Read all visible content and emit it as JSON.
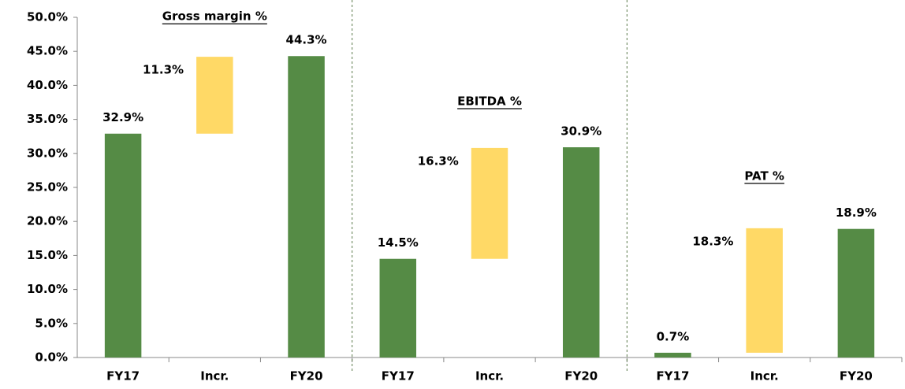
{
  "chart_data": {
    "type": "waterfall",
    "groups": [
      {
        "title": "Gross margin %",
        "categories": [
          "FY17",
          "Incr.",
          "FY20"
        ],
        "values": [
          32.9,
          11.3,
          44.3
        ],
        "value_labels": [
          "32.9%",
          "11.3%",
          "44.3%"
        ]
      },
      {
        "title": "EBITDA %",
        "categories": [
          "FY17",
          "Incr.",
          "FY20"
        ],
        "values": [
          14.5,
          16.3,
          30.9
        ],
        "value_labels": [
          "14.5%",
          "16.3%",
          "30.9%"
        ]
      },
      {
        "title": "PAT %",
        "categories": [
          "FY17",
          "Incr.",
          "FY20"
        ],
        "values": [
          0.7,
          18.3,
          18.9
        ],
        "value_labels": [
          "0.7%",
          "18.3%",
          "18.9%"
        ]
      }
    ],
    "total_color": "#558b45",
    "increase_color": "#ffd966",
    "ylim": [
      0,
      50
    ],
    "yticks": [
      {
        "value": 0,
        "label": "0.0%"
      },
      {
        "value": 5,
        "label": "5.0%"
      },
      {
        "value": 10,
        "label": "10.0%"
      },
      {
        "value": 15,
        "label": "15.0%"
      },
      {
        "value": 20,
        "label": "20.0%"
      },
      {
        "value": 25,
        "label": "25.0%"
      },
      {
        "value": 30,
        "label": "30.0%"
      },
      {
        "value": 35,
        "label": "35.0%"
      },
      {
        "value": 40,
        "label": "40.0%"
      },
      {
        "value": 45,
        "label": "45.0%"
      },
      {
        "value": 50,
        "label": "50.0%"
      }
    ]
  }
}
